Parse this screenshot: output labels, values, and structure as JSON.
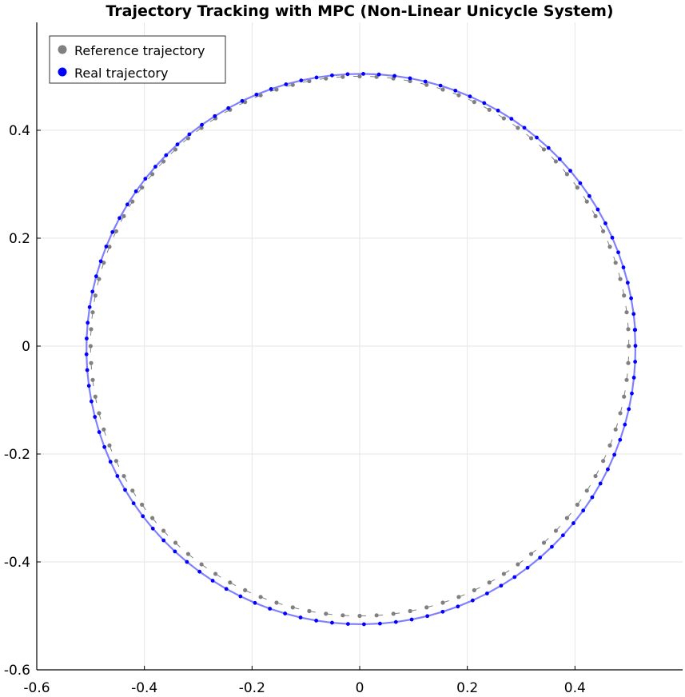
{
  "chart_data": {
    "type": "scatter",
    "title": "Trajectory Tracking with MPC (Non-Linear Unicycle System)",
    "xlabel": "",
    "ylabel": "",
    "xlim": [
      -0.6,
      0.6
    ],
    "ylim": [
      -0.6,
      0.6
    ],
    "x_ticks": [
      -0.6,
      -0.4,
      -0.2,
      0,
      0.2,
      0.4
    ],
    "y_ticks": [
      -0.6,
      -0.4,
      -0.2,
      0,
      0.2,
      0.4
    ],
    "grid": true,
    "legend_position": "top-left",
    "series": [
      {
        "name": "Reference trajectory",
        "color": "#808080",
        "marker": "dot with heading arrow",
        "center": [
          0,
          0
        ],
        "radius": 0.5,
        "points": 100
      },
      {
        "name": "Real trajectory",
        "color": "#0000ff",
        "line_color": "#8080ff",
        "marker": "dot",
        "start": [
          0.51,
          0.03
        ],
        "approx_radius": 0.51,
        "points": 110
      }
    ]
  }
}
